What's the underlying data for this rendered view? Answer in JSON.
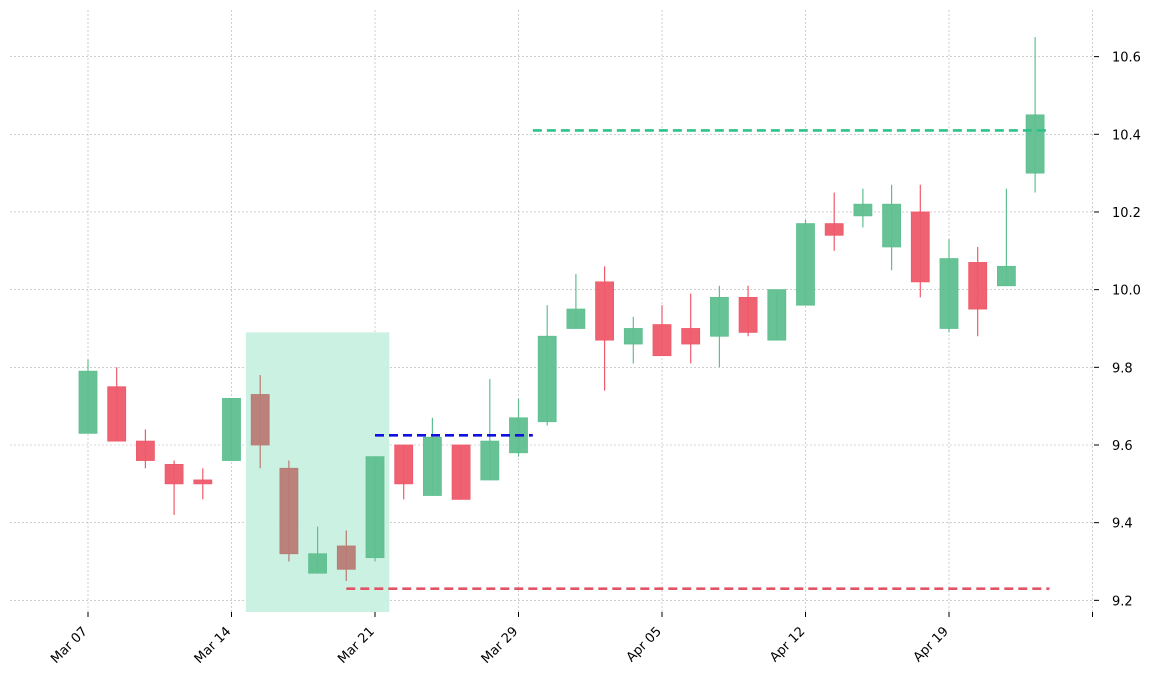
{
  "chart_data": {
    "type": "candlestick",
    "title": "",
    "xlabel": "",
    "ylabel": "",
    "ylim": [
      9.17,
      10.72
    ],
    "x_tick_labels": [
      "Mar 07",
      "Mar 14",
      "Mar 21",
      "Mar 29",
      "Apr 05",
      "Apr 12",
      "Apr 19",
      ""
    ],
    "y_ticks": [
      9.2,
      9.4,
      9.6,
      9.8,
      10.0,
      10.2,
      10.4,
      10.6
    ],
    "y_tick_labels": [
      "9.2",
      "9.4",
      "9.6",
      "9.8",
      "10.0",
      "10.2",
      "10.4",
      "10.6"
    ],
    "grid": true,
    "colors": {
      "up": "#5fbf8f",
      "down": "#ee5a6a",
      "highlight_candle": "#b87b74",
      "pattern_zone": "#c8f0e0",
      "resistance_line": "#2ec28b",
      "support_line": "#e05466",
      "pattern_line": "#1010e0",
      "grid": "#b0b0b0"
    },
    "candles": [
      {
        "date": "Mar 07",
        "open": 9.63,
        "high": 9.82,
        "low": 9.63,
        "close": 9.79
      },
      {
        "date": "Mar 08",
        "open": 9.75,
        "high": 9.8,
        "low": 9.61,
        "close": 9.61
      },
      {
        "date": "Mar 09",
        "open": 9.61,
        "high": 9.64,
        "low": 9.54,
        "close": 9.56
      },
      {
        "date": "Mar 10",
        "open": 9.55,
        "high": 9.56,
        "low": 9.42,
        "close": 9.5
      },
      {
        "date": "Mar 11",
        "open": 9.51,
        "high": 9.54,
        "low": 9.46,
        "close": 9.5
      },
      {
        "date": "Mar 14",
        "open": 9.56,
        "high": 9.72,
        "low": 9.56,
        "close": 9.72
      },
      {
        "date": "Mar 15",
        "open": 9.73,
        "high": 9.78,
        "low": 9.54,
        "close": 9.6,
        "highlight": true
      },
      {
        "date": "Mar 16",
        "open": 9.54,
        "high": 9.56,
        "low": 9.3,
        "close": 9.32,
        "highlight": true
      },
      {
        "date": "Mar 17",
        "open": 9.27,
        "high": 9.39,
        "low": 9.27,
        "close": 9.32
      },
      {
        "date": "Mar 18",
        "open": 9.34,
        "high": 9.38,
        "low": 9.25,
        "close": 9.28,
        "highlight": true
      },
      {
        "date": "Mar 21",
        "open": 9.31,
        "high": 9.57,
        "low": 9.3,
        "close": 9.57
      },
      {
        "date": "Mar 22",
        "open": 9.6,
        "high": 9.6,
        "low": 9.46,
        "close": 9.5
      },
      {
        "date": "Mar 23",
        "open": 9.47,
        "high": 9.67,
        "low": 9.47,
        "close": 9.62
      },
      {
        "date": "Mar 24",
        "open": 9.6,
        "high": 9.6,
        "low": 9.46,
        "close": 9.46
      },
      {
        "date": "Mar 25",
        "open": 9.51,
        "high": 9.77,
        "low": 9.51,
        "close": 9.61
      },
      {
        "date": "Mar 28",
        "open": 9.58,
        "high": 9.72,
        "low": 9.57,
        "close": 9.67
      },
      {
        "date": "Mar 29",
        "open": 9.66,
        "high": 9.96,
        "low": 9.65,
        "close": 9.88
      },
      {
        "date": "Mar 30",
        "open": 9.9,
        "high": 10.04,
        "low": 9.9,
        "close": 9.95
      },
      {
        "date": "Mar 31",
        "open": 10.02,
        "high": 10.06,
        "low": 9.74,
        "close": 9.87
      },
      {
        "date": "Apr 01",
        "open": 9.86,
        "high": 9.93,
        "low": 9.81,
        "close": 9.9
      },
      {
        "date": "Apr 04",
        "open": 9.91,
        "high": 9.96,
        "low": 9.83,
        "close": 9.83
      },
      {
        "date": "Apr 05",
        "open": 9.9,
        "high": 9.99,
        "low": 9.81,
        "close": 9.86
      },
      {
        "date": "Apr 06",
        "open": 9.88,
        "high": 10.01,
        "low": 9.8,
        "close": 9.98
      },
      {
        "date": "Apr 07",
        "open": 9.98,
        "high": 10.01,
        "low": 9.88,
        "close": 9.89
      },
      {
        "date": "Apr 08",
        "open": 9.87,
        "high": 10.0,
        "low": 9.87,
        "close": 10.0
      },
      {
        "date": "Apr 11",
        "open": 9.96,
        "high": 10.18,
        "low": 9.96,
        "close": 10.17
      },
      {
        "date": "Apr 12",
        "open": 10.17,
        "high": 10.25,
        "low": 10.1,
        "close": 10.14
      },
      {
        "date": "Apr 13",
        "open": 10.19,
        "high": 10.26,
        "low": 10.16,
        "close": 10.22
      },
      {
        "date": "Apr 14",
        "open": 10.11,
        "high": 10.27,
        "low": 10.05,
        "close": 10.22
      },
      {
        "date": "Apr 15",
        "open": 10.2,
        "high": 10.27,
        "low": 9.98,
        "close": 10.02
      },
      {
        "date": "Apr 18",
        "open": 9.9,
        "high": 10.13,
        "low": 9.89,
        "close": 10.08
      },
      {
        "date": "Apr 19",
        "open": 10.07,
        "high": 10.11,
        "low": 9.88,
        "close": 9.95
      },
      {
        "date": "Apr 20",
        "open": 10.01,
        "high": 10.26,
        "low": 10.01,
        "close": 10.06
      },
      {
        "date": "Apr 21",
        "open": 10.3,
        "high": 10.65,
        "low": 10.25,
        "close": 10.45
      }
    ],
    "pattern_zone": {
      "start_index": 5.5,
      "end_index": 10.5,
      "low": 9.17,
      "high": 9.89
    },
    "lines": [
      {
        "kind": "resistance",
        "value": 10.41,
        "start_index": 15.5,
        "end_index": 33.5
      },
      {
        "kind": "support",
        "value": 9.23,
        "start_index": 9,
        "end_index": 33.5
      },
      {
        "kind": "pattern",
        "value": 9.625,
        "start_index": 10,
        "end_index": 15.5
      }
    ]
  }
}
